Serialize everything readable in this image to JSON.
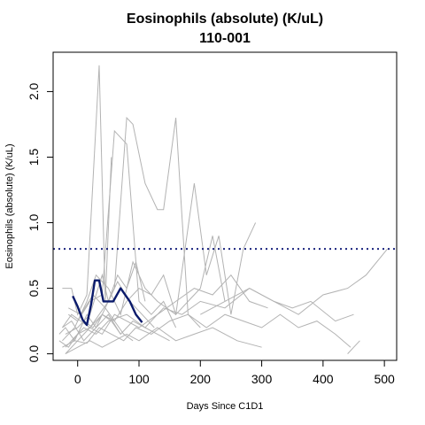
{
  "chart_data": {
    "type": "line",
    "title": "Eosinophils (absolute) (K/uL)",
    "subtitle": "110-001",
    "xlabel": "Days Since C1D1",
    "ylabel": "Eosinophils (absolute) (K/uL)",
    "xlim": [
      -40,
      520
    ],
    "ylim": [
      -0.05,
      2.3
    ],
    "x_ticks": [
      0,
      100,
      200,
      300,
      400,
      500
    ],
    "y_ticks": [
      0.0,
      0.5,
      1.0,
      1.5,
      2.0
    ],
    "x_tick_labels": [
      "0",
      "100",
      "200",
      "300",
      "400",
      "500"
    ],
    "y_tick_labels": [
      "0.0",
      "0.5",
      "1.0",
      "1.5",
      "2.0"
    ],
    "grid": false,
    "reference_line": {
      "y": 0.8,
      "style": "dotted",
      "color": "#1a237e"
    },
    "colors": {
      "background_series": "#b3b3b3",
      "highlight_series": "#0a1a6b"
    },
    "highlight_series": {
      "x": [
        -8,
        0,
        8,
        15,
        22,
        28,
        35,
        42,
        50,
        58,
        70,
        85,
        95,
        105
      ],
      "y": [
        0.44,
        0.36,
        0.26,
        0.22,
        0.38,
        0.56,
        0.56,
        0.4,
        0.4,
        0.4,
        0.5,
        0.4,
        0.3,
        0.24
      ]
    },
    "background_series": [
      {
        "x": [
          -25,
          -10,
          0,
          15,
          35,
          45,
          55
        ],
        "y": [
          0.5,
          0.5,
          0.3,
          0.45,
          2.2,
          0.4,
          1.5
        ]
      },
      {
        "x": [
          -20,
          0,
          20,
          40,
          50,
          60,
          80,
          90,
          110,
          130,
          140,
          160,
          180,
          200
        ],
        "y": [
          0.15,
          0.2,
          0.3,
          0.6,
          0.4,
          0.5,
          1.8,
          1.75,
          1.3,
          1.1,
          1.1,
          1.8,
          0.3,
          0.2
        ]
      },
      {
        "x": [
          -15,
          0,
          20,
          40,
          60,
          80,
          100,
          120,
          140,
          160
        ],
        "y": [
          0.3,
          0.25,
          0.4,
          0.45,
          1.7,
          1.6,
          0.4,
          0.3,
          0.4,
          0.2
        ]
      },
      {
        "x": [
          -25,
          -5,
          15,
          30,
          50,
          70,
          90,
          110,
          130,
          160,
          190,
          210,
          230,
          250,
          270,
          290
        ],
        "y": [
          0.1,
          0.2,
          0.4,
          0.6,
          0.5,
          0.3,
          0.7,
          0.5,
          0.4,
          0.3,
          1.3,
          0.6,
          0.9,
          0.3,
          0.8,
          1.0
        ]
      },
      {
        "x": [
          -20,
          0,
          20,
          40,
          60,
          80,
          100,
          120,
          140,
          160,
          180,
          200,
          220,
          240
        ],
        "y": [
          0.05,
          0.15,
          0.2,
          0.3,
          0.25,
          0.4,
          0.5,
          0.45,
          0.6,
          0.3,
          0.4,
          0.5,
          0.9,
          0.4
        ]
      },
      {
        "x": [
          -25,
          -10,
          5,
          20,
          35,
          50,
          65,
          80,
          95,
          110
        ],
        "y": [
          0.2,
          0.3,
          0.25,
          0.2,
          0.3,
          0.4,
          0.6,
          0.5,
          0.7,
          0.4
        ]
      },
      {
        "x": [
          -30,
          -15,
          0,
          15,
          30,
          45,
          60,
          75,
          90
        ],
        "y": [
          0.1,
          0.05,
          0.15,
          0.3,
          0.2,
          0.35,
          0.25,
          0.15,
          0.1
        ]
      },
      {
        "x": [
          -20,
          0,
          20,
          40,
          60,
          80,
          100,
          130,
          160,
          190,
          220,
          250,
          280,
          310
        ],
        "y": [
          0.0,
          0.1,
          0.2,
          0.15,
          0.3,
          0.25,
          0.2,
          0.3,
          0.4,
          0.5,
          0.45,
          0.6,
          0.4,
          0.35
        ]
      },
      {
        "x": [
          -10,
          10,
          30,
          50,
          80,
          110,
          140,
          170,
          200,
          240,
          280,
          320,
          360,
          400,
          440,
          470,
          505
        ],
        "y": [
          0.1,
          0.2,
          0.15,
          0.25,
          0.3,
          0.2,
          0.35,
          0.3,
          0.4,
          0.35,
          0.5,
          0.4,
          0.3,
          0.45,
          0.5,
          0.6,
          0.8
        ]
      },
      {
        "x": [
          -25,
          -5,
          15,
          35,
          55,
          75,
          95,
          120,
          150,
          180,
          210,
          240,
          270,
          300,
          330,
          360,
          390,
          420,
          445
        ],
        "y": [
          0.05,
          0.1,
          0.08,
          0.2,
          0.15,
          0.1,
          0.2,
          0.15,
          0.25,
          0.3,
          0.2,
          0.3,
          0.25,
          0.2,
          0.3,
          0.2,
          0.25,
          0.15,
          0.05
        ]
      },
      {
        "x": [
          200,
          240,
          280,
          320,
          350,
          380,
          420,
          450
        ],
        "y": [
          0.3,
          0.4,
          0.5,
          0.4,
          0.35,
          0.4,
          0.25,
          0.3
        ]
      },
      {
        "x": [
          -20,
          0,
          20,
          40,
          60,
          80,
          100,
          130,
          160,
          190,
          220,
          260,
          300
        ],
        "y": [
          0.0,
          0.05,
          0.1,
          0.05,
          0.1,
          0.15,
          0.1,
          0.2,
          0.1,
          0.15,
          0.2,
          0.1,
          0.05
        ]
      },
      {
        "x": [
          440,
          450,
          460
        ],
        "y": [
          0.0,
          0.05,
          0.1
        ]
      },
      {
        "x": [
          -25,
          -10,
          10,
          30,
          50,
          70,
          90,
          110,
          130,
          150
        ],
        "y": [
          0.2,
          0.25,
          0.1,
          0.2,
          0.3,
          0.15,
          0.25,
          0.2,
          0.15,
          0.1
        ]
      },
      {
        "x": [
          -15,
          5,
          25,
          45,
          65,
          85,
          105,
          125
        ],
        "y": [
          0.35,
          0.3,
          0.45,
          0.35,
          0.55,
          0.4,
          0.3,
          0.2
        ]
      },
      {
        "x": [
          -30,
          -20,
          -5,
          10,
          25,
          40,
          55,
          70
        ],
        "y": [
          0.15,
          0.2,
          0.1,
          0.25,
          0.2,
          0.3,
          0.25,
          0.15
        ]
      }
    ]
  }
}
